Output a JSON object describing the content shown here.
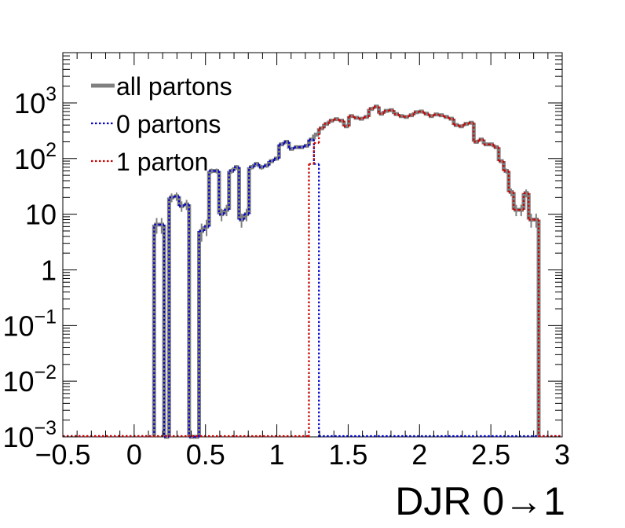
{
  "chart_data": {
    "type": "histogram",
    "title": "",
    "xlabel": "DJR 0→1",
    "ylabel": "",
    "xlim": [
      -0.5,
      3.0
    ],
    "ylim": [
      0.001,
      8000
    ],
    "yscale": "log",
    "grid": false,
    "legend_position": "top-left",
    "x_ticks": [
      {
        "value": -0.5,
        "label": "−0.5"
      },
      {
        "value": 0,
        "label": "0"
      },
      {
        "value": 0.5,
        "label": "0.5"
      },
      {
        "value": 1,
        "label": "1"
      },
      {
        "value": 1.5,
        "label": "1.5"
      },
      {
        "value": 2,
        "label": "2"
      },
      {
        "value": 2.5,
        "label": "2.5"
      },
      {
        "value": 3,
        "label": "3"
      }
    ],
    "y_ticks": [
      {
        "value": 0.001,
        "base": "10",
        "exp": "−3"
      },
      {
        "value": 0.01,
        "base": "10",
        "exp": "−2"
      },
      {
        "value": 0.1,
        "base": "10",
        "exp": "−1"
      },
      {
        "value": 1,
        "base": "1",
        "exp": ""
      },
      {
        "value": 10,
        "base": "10",
        "exp": ""
      },
      {
        "value": 100,
        "base": "10",
        "exp": "2"
      },
      {
        "value": 1000,
        "base": "10",
        "exp": "3"
      }
    ],
    "bin_width": 0.035,
    "series": [
      {
        "name": "all partons",
        "color": "#808080",
        "style": "solid",
        "bins": [
          [
            0.14,
            6.5
          ],
          [
            0.175,
            6.5
          ],
          [
            0.21,
            0
          ],
          [
            0.245,
            20
          ],
          [
            0.28,
            21
          ],
          [
            0.315,
            14
          ],
          [
            0.35,
            15
          ],
          [
            0.385,
            0
          ],
          [
            0.42,
            0
          ],
          [
            0.455,
            5
          ],
          [
            0.49,
            6
          ],
          [
            0.525,
            60
          ],
          [
            0.56,
            60
          ],
          [
            0.595,
            10
          ],
          [
            0.63,
            12
          ],
          [
            0.665,
            60
          ],
          [
            0.7,
            70
          ],
          [
            0.735,
            8
          ],
          [
            0.77,
            10
          ],
          [
            0.805,
            70
          ],
          [
            0.84,
            80
          ],
          [
            0.875,
            70
          ],
          [
            0.91,
            75
          ],
          [
            0.945,
            90
          ],
          [
            0.98,
            100
          ],
          [
            1.015,
            180
          ],
          [
            1.05,
            200
          ],
          [
            1.085,
            150
          ],
          [
            1.12,
            160
          ],
          [
            1.155,
            160
          ],
          [
            1.19,
            170
          ],
          [
            1.225,
            220
          ],
          [
            1.26,
            270
          ],
          [
            1.295,
            350
          ],
          [
            1.33,
            420
          ],
          [
            1.365,
            480
          ],
          [
            1.4,
            510
          ],
          [
            1.435,
            480
          ],
          [
            1.47,
            380
          ],
          [
            1.505,
            580
          ],
          [
            1.54,
            540
          ],
          [
            1.575,
            520
          ],
          [
            1.61,
            560
          ],
          [
            1.645,
            780
          ],
          [
            1.68,
            860
          ],
          [
            1.715,
            640
          ],
          [
            1.75,
            720
          ],
          [
            1.785,
            740
          ],
          [
            1.82,
            630
          ],
          [
            1.855,
            580
          ],
          [
            1.89,
            560
          ],
          [
            1.925,
            600
          ],
          [
            1.96,
            680
          ],
          [
            1.995,
            700
          ],
          [
            2.03,
            640
          ],
          [
            2.065,
            580
          ],
          [
            2.1,
            620
          ],
          [
            2.135,
            600
          ],
          [
            2.17,
            560
          ],
          [
            2.205,
            520
          ],
          [
            2.24,
            400
          ],
          [
            2.275,
            380
          ],
          [
            2.31,
            420
          ],
          [
            2.345,
            440
          ],
          [
            2.38,
            200
          ],
          [
            2.415,
            220
          ],
          [
            2.45,
            180
          ],
          [
            2.485,
            180
          ],
          [
            2.52,
            160
          ],
          [
            2.555,
            90
          ],
          [
            2.59,
            60
          ],
          [
            2.625,
            25
          ],
          [
            2.66,
            12
          ],
          [
            2.695,
            12
          ],
          [
            2.73,
            24
          ],
          [
            2.765,
            8
          ],
          [
            2.8,
            8
          ]
        ]
      },
      {
        "name": "0 partons",
        "color": "#0000cc",
        "style": "dotted",
        "bins": [
          [
            0.14,
            6.5
          ],
          [
            0.175,
            6.5
          ],
          [
            0.21,
            0
          ],
          [
            0.245,
            20
          ],
          [
            0.28,
            21
          ],
          [
            0.315,
            14
          ],
          [
            0.35,
            15
          ],
          [
            0.385,
            0
          ],
          [
            0.42,
            0
          ],
          [
            0.455,
            5
          ],
          [
            0.49,
            6
          ],
          [
            0.525,
            60
          ],
          [
            0.56,
            60
          ],
          [
            0.595,
            10
          ],
          [
            0.63,
            12
          ],
          [
            0.665,
            60
          ],
          [
            0.7,
            70
          ],
          [
            0.735,
            8
          ],
          [
            0.77,
            10
          ],
          [
            0.805,
            70
          ],
          [
            0.84,
            80
          ],
          [
            0.875,
            70
          ],
          [
            0.91,
            75
          ],
          [
            0.945,
            90
          ],
          [
            0.98,
            100
          ],
          [
            1.015,
            180
          ],
          [
            1.05,
            200
          ],
          [
            1.085,
            150
          ],
          [
            1.12,
            160
          ],
          [
            1.155,
            160
          ],
          [
            1.19,
            170
          ],
          [
            1.225,
            220
          ],
          [
            1.26,
            80
          ]
        ]
      },
      {
        "name": "1 parton",
        "color": "#cc0000",
        "style": "dotted",
        "bins": [
          [
            1.225,
            80
          ],
          [
            1.26,
            190
          ],
          [
            1.295,
            350
          ],
          [
            1.33,
            420
          ],
          [
            1.365,
            480
          ],
          [
            1.4,
            510
          ],
          [
            1.435,
            480
          ],
          [
            1.47,
            380
          ],
          [
            1.505,
            580
          ],
          [
            1.54,
            540
          ],
          [
            1.575,
            520
          ],
          [
            1.61,
            560
          ],
          [
            1.645,
            780
          ],
          [
            1.68,
            860
          ],
          [
            1.715,
            640
          ],
          [
            1.75,
            720
          ],
          [
            1.785,
            740
          ],
          [
            1.82,
            630
          ],
          [
            1.855,
            580
          ],
          [
            1.89,
            560
          ],
          [
            1.925,
            600
          ],
          [
            1.96,
            680
          ],
          [
            1.995,
            700
          ],
          [
            2.03,
            640
          ],
          [
            2.065,
            580
          ],
          [
            2.1,
            620
          ],
          [
            2.135,
            600
          ],
          [
            2.17,
            560
          ],
          [
            2.205,
            520
          ],
          [
            2.24,
            400
          ],
          [
            2.275,
            380
          ],
          [
            2.31,
            420
          ],
          [
            2.345,
            440
          ],
          [
            2.38,
            200
          ],
          [
            2.415,
            220
          ],
          [
            2.45,
            180
          ],
          [
            2.485,
            180
          ],
          [
            2.52,
            160
          ],
          [
            2.555,
            90
          ],
          [
            2.59,
            60
          ],
          [
            2.625,
            25
          ],
          [
            2.66,
            12
          ],
          [
            2.695,
            12
          ],
          [
            2.73,
            24
          ],
          [
            2.765,
            8
          ],
          [
            2.8,
            8
          ]
        ]
      }
    ]
  }
}
